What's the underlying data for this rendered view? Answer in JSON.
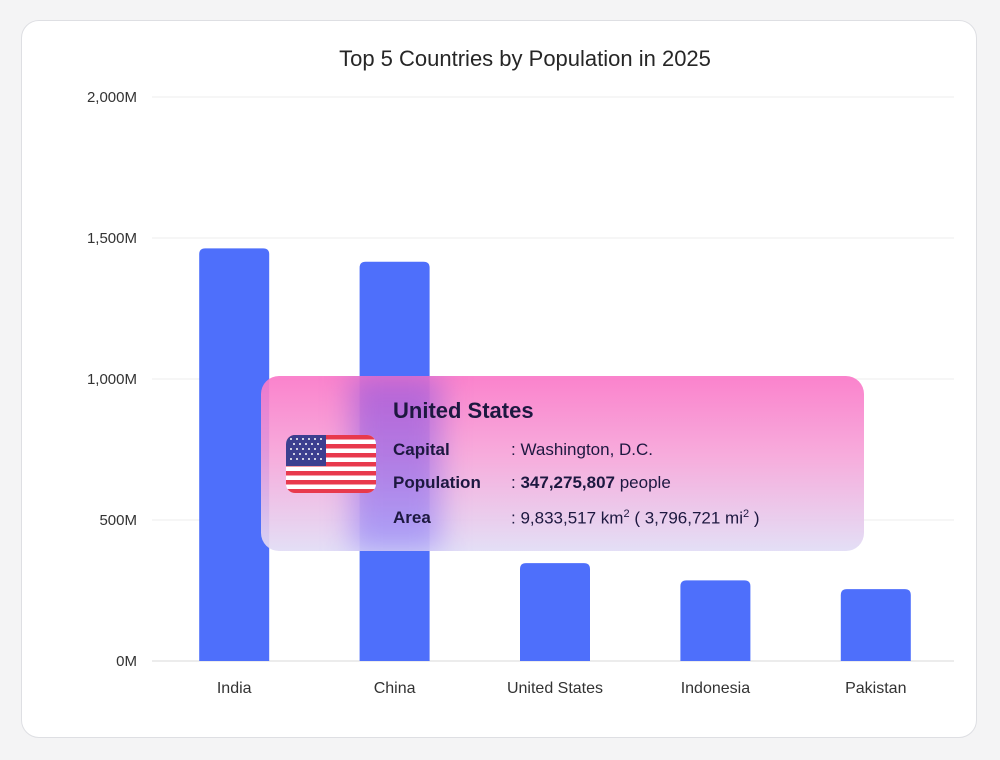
{
  "chart_data": {
    "type": "bar",
    "title": "Top 5 Countries by Population in 2025",
    "categories": [
      "India",
      "China",
      "United States",
      "Indonesia",
      "Pakistan"
    ],
    "values": [
      1463,
      1416,
      347,
      286,
      255
    ],
    "unit": "M",
    "ylim": [
      0,
      2000
    ],
    "yticks": [
      "0M",
      "500M",
      "1,000M",
      "1,500M",
      "2,000M"
    ],
    "ytick_values": [
      0,
      500,
      1000,
      1500,
      2000
    ],
    "grid": true,
    "bar_color": "#4e6ffb"
  },
  "tooltip": {
    "country": "United States",
    "flag_icon": "us-flag-icon",
    "capital_label": "Capital",
    "capital_value": ": Washington, D.C.",
    "population_label": "Population",
    "population_sep": ": ",
    "population_value": "347,275,807",
    "population_unit": " people",
    "area_label": "Area",
    "area_prefix": ": 9,833,517  km",
    "area_km_exp": "2",
    "area_middle": "  ( 3,796,721  mi",
    "area_mi_exp": "2",
    "area_suffix": "  )"
  }
}
